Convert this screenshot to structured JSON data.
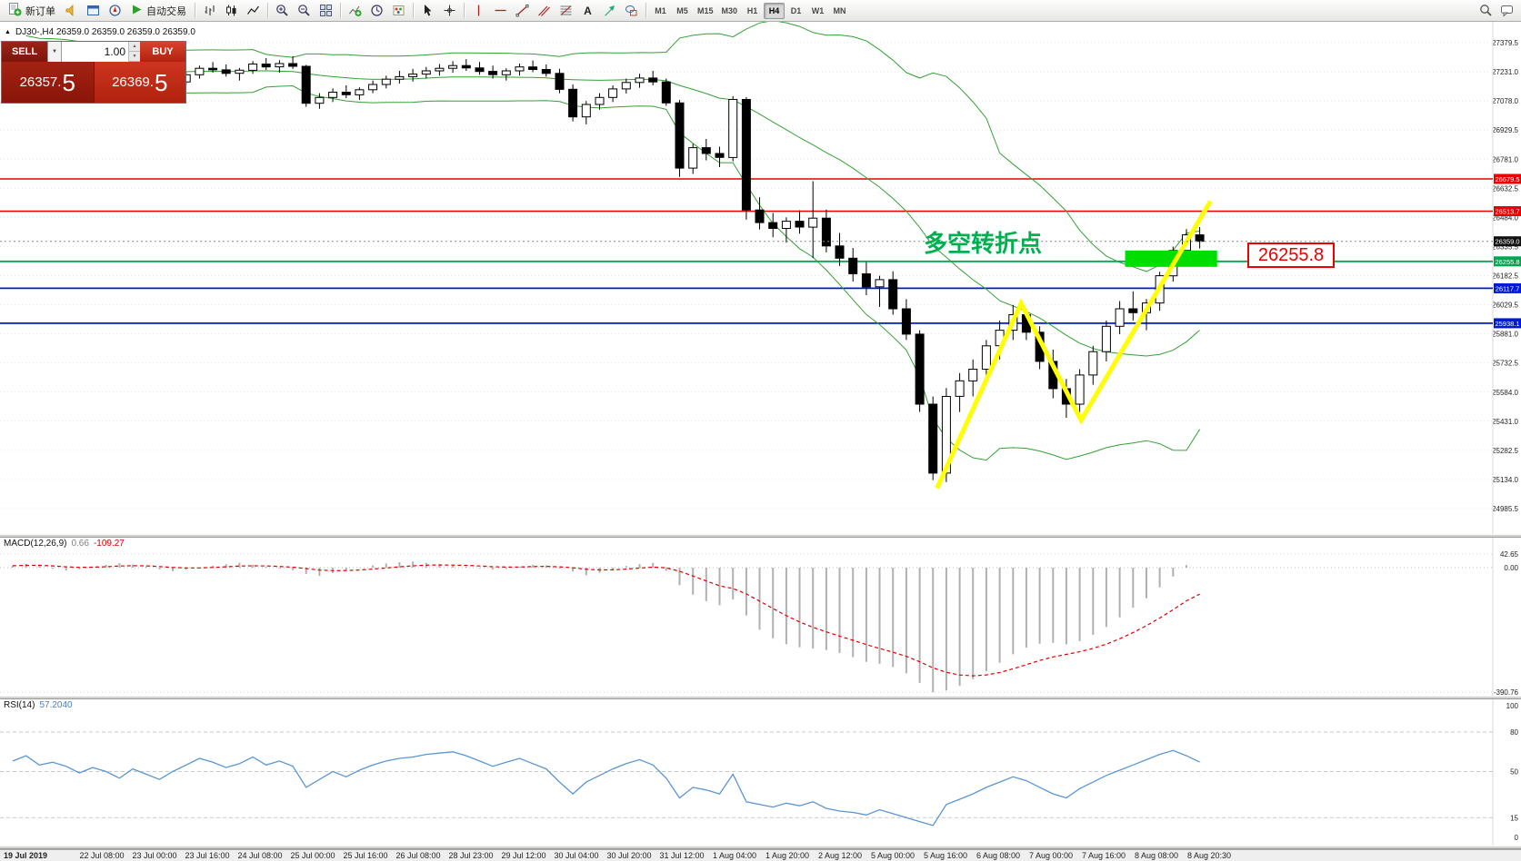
{
  "toolbar": {
    "new_order_label": "新订单",
    "autotrade_label": "自动交易",
    "timeframes": [
      "M1",
      "M5",
      "M15",
      "M30",
      "H1",
      "H4",
      "D1",
      "W1",
      "MN"
    ],
    "active_timeframe": "H4"
  },
  "trade_panel": {
    "sell_label": "SELL",
    "buy_label": "BUY",
    "volume": "1.00",
    "sell_price_main": "26357.",
    "sell_price_big": "5",
    "buy_price_main": "26369.",
    "buy_price_big": "5"
  },
  "chart": {
    "ohlc_header": "DJ30-,H4  26359.0 26359.0 26359.0 26359.0",
    "annotation": "多空转折点",
    "price_callout": "26255.8"
  },
  "chart_data": {
    "type": "candlestick",
    "title": "DJ30-,H4",
    "price_range": {
      "top": 27379.5,
      "bottom": 24985.5
    },
    "price_ticks": [
      "27379.5",
      "27231.0",
      "27078.0",
      "26929.5",
      "26781.0",
      "26632.5",
      "26484.0",
      "26335.5",
      "26182.5",
      "26029.5",
      "25881.0",
      "25732.5",
      "25584.0",
      "25431.0",
      "25282.5",
      "25134.0",
      "24985.5"
    ],
    "candles": [
      [
        27290,
        27340,
        27255,
        27315
      ],
      [
        27315,
        27350,
        27280,
        27295
      ],
      [
        27295,
        27325,
        27245,
        27265
      ],
      [
        27265,
        27305,
        27235,
        27285
      ],
      [
        27285,
        27315,
        27250,
        27268
      ],
      [
        27268,
        27295,
        27205,
        27225
      ],
      [
        27225,
        27265,
        27195,
        27245
      ],
      [
        27245,
        27275,
        27215,
        27228
      ],
      [
        27228,
        27255,
        27155,
        27175
      ],
      [
        27175,
        27225,
        27145,
        27205
      ],
      [
        27205,
        27235,
        27175,
        27188
      ],
      [
        27188,
        27215,
        27125,
        27145
      ],
      [
        27145,
        27195,
        27115,
        27178
      ],
      [
        27178,
        27230,
        27160,
        27215
      ],
      [
        27215,
        27262,
        27195,
        27248
      ],
      [
        27248,
        27280,
        27225,
        27240
      ],
      [
        27240,
        27268,
        27205,
        27222
      ],
      [
        27222,
        27250,
        27185,
        27238
      ],
      [
        27238,
        27285,
        27220,
        27270
      ],
      [
        27270,
        27300,
        27240,
        27255
      ],
      [
        27255,
        27290,
        27225,
        27272
      ],
      [
        27272,
        27310,
        27245,
        27258
      ],
      [
        27258,
        27265,
        27050,
        27068
      ],
      [
        27068,
        27120,
        27040,
        27098
      ],
      [
        27098,
        27145,
        27075,
        27125
      ],
      [
        27125,
        27160,
        27095,
        27112
      ],
      [
        27112,
        27150,
        27085,
        27138
      ],
      [
        27138,
        27185,
        27120,
        27165
      ],
      [
        27165,
        27210,
        27145,
        27192
      ],
      [
        27192,
        27235,
        27170,
        27205
      ],
      [
        27205,
        27245,
        27180,
        27218
      ],
      [
        27218,
        27255,
        27195,
        27235
      ],
      [
        27235,
        27270,
        27210,
        27248
      ],
      [
        27248,
        27285,
        27225,
        27262
      ],
      [
        27262,
        27295,
        27235,
        27250
      ],
      [
        27250,
        27280,
        27215,
        27232
      ],
      [
        27232,
        27262,
        27195,
        27215
      ],
      [
        27215,
        27248,
        27185,
        27235
      ],
      [
        27235,
        27272,
        27210,
        27255
      ],
      [
        27255,
        27288,
        27228,
        27242
      ],
      [
        27242,
        27268,
        27205,
        27222
      ],
      [
        27222,
        27245,
        27120,
        27140
      ],
      [
        27140,
        27165,
        26975,
        26998
      ],
      [
        26998,
        27080,
        26960,
        27062
      ],
      [
        27062,
        27120,
        27035,
        27098
      ],
      [
        27098,
        27160,
        27075,
        27142
      ],
      [
        27142,
        27195,
        27118,
        27175
      ],
      [
        27175,
        27220,
        27148,
        27198
      ],
      [
        27198,
        27235,
        27160,
        27178
      ],
      [
        27178,
        27195,
        27055,
        27070
      ],
      [
        27070,
        27085,
        26690,
        26735
      ],
      [
        26735,
        26860,
        26705,
        26840
      ],
      [
        26840,
        26885,
        26775,
        26810
      ],
      [
        26810,
        26845,
        26740,
        26790
      ],
      [
        26790,
        27105,
        26770,
        27088
      ],
      [
        27088,
        27100,
        26470,
        26520
      ],
      [
        26520,
        26585,
        26420,
        26455
      ],
      [
        26455,
        26505,
        26380,
        26425
      ],
      [
        26425,
        26482,
        26352,
        26462
      ],
      [
        26462,
        26518,
        26398,
        26432
      ],
      [
        26432,
        26668,
        26272,
        26478
      ],
      [
        26478,
        26522,
        26302,
        26335
      ],
      [
        26335,
        26402,
        26232,
        26272
      ],
      [
        26272,
        26325,
        26152,
        26192
      ],
      [
        26192,
        26252,
        26082,
        26125
      ],
      [
        26125,
        26182,
        26022,
        26162
      ],
      [
        26162,
        26205,
        25982,
        26012
      ],
      [
        26012,
        26062,
        25852,
        25882
      ],
      [
        25882,
        25902,
        25482,
        25522
      ],
      [
        25522,
        25562,
        25132,
        25168
      ],
      [
        25168,
        25605,
        25122,
        25562
      ],
      [
        25562,
        25682,
        25482,
        25642
      ],
      [
        25642,
        25752,
        25562,
        25702
      ],
      [
        25702,
        25852,
        25652,
        25822
      ],
      [
        25822,
        25952,
        25752,
        25902
      ],
      [
        25902,
        26032,
        25852,
        25982
      ],
      [
        25982,
        26012,
        25852,
        25892
      ],
      [
        25892,
        25922,
        25702,
        25742
      ],
      [
        25742,
        25802,
        25552,
        25602
      ],
      [
        25602,
        25652,
        25452,
        25522
      ],
      [
        25522,
        25702,
        25482,
        25672
      ],
      [
        25672,
        25822,
        25622,
        25792
      ],
      [
        25792,
        25952,
        25742,
        25922
      ],
      [
        25922,
        26052,
        25882,
        26012
      ],
      [
        26012,
        26102,
        25952,
        25992
      ],
      [
        25992,
        26062,
        25902,
        26042
      ],
      [
        26042,
        26202,
        26002,
        26182
      ],
      [
        26182,
        26332,
        26152,
        26312
      ],
      [
        26312,
        26422,
        26262,
        26392
      ],
      [
        26392,
        26432,
        26322,
        26359
      ]
    ],
    "bollinger": {
      "period": 20,
      "deviation": 2,
      "color": "#35a035"
    },
    "hlines": [
      {
        "price": 26679.5,
        "label": "26679.5",
        "color": "#ea0000",
        "width": 1.4
      },
      {
        "price": 26513.7,
        "label": "26513.7",
        "color": "#ea0000",
        "width": 1.4
      },
      {
        "price": 26255.8,
        "label": "26255.8",
        "color": "#00a651",
        "width": 1.8
      },
      {
        "price": 26117.7,
        "label": "26117.7",
        "color": "#0018d8",
        "width": 1.8
      },
      {
        "price": 25938.1,
        "label": "25938.1",
        "color": "#0018d8",
        "width": 1.8
      }
    ],
    "current_price": {
      "label": "26359.0",
      "price": 26359.0,
      "color": "#111111"
    },
    "highlight_box": {
      "from_idx": 83.4,
      "to_idx": 90.3,
      "price_top": 26312,
      "price_bottom": 26228,
      "color": "#00dd00"
    },
    "zigzag": {
      "color": "#ffff00",
      "points": [
        [
          69.3,
          25090
        ],
        [
          75.6,
          26040
        ],
        [
          80.1,
          25440
        ],
        [
          89.8,
          26565
        ]
      ]
    },
    "macd": {
      "header": "MACD(12,26,9)",
      "main_value": "0.66",
      "signal_value": "-109.27",
      "scale_labels": [
        "42.65",
        "0.00",
        "-390.76"
      ],
      "histogram_color": "#b0b0b0",
      "signal_color": "#e00000",
      "histogram": [
        6,
        12,
        8,
        -3,
        -9,
        -5,
        3,
        9,
        14,
        10,
        4,
        -5,
        -11,
        -7,
        -1,
        6,
        11,
        15,
        9,
        3,
        -3,
        -8,
        -20,
        -26,
        -17,
        -8,
        -1,
        7,
        13,
        17,
        19,
        15,
        11,
        7,
        3,
        -2,
        -6,
        -4,
        3,
        9,
        7,
        -3,
        -12,
        -24,
        -16,
        -6,
        5,
        11,
        15,
        -10,
        -55,
        -85,
        -105,
        -118,
        -100,
        -150,
        -195,
        -222,
        -240,
        -250,
        -254,
        -259,
        -268,
        -281,
        -296,
        -302,
        -312,
        -332,
        -362,
        -391,
        -386,
        -371,
        -350,
        -325,
        -299,
        -272,
        -251,
        -239,
        -236,
        -241,
        -231,
        -211,
        -186,
        -156,
        -126,
        -96,
        -62,
        -28,
        8,
        0.66
      ]
    },
    "rsi": {
      "header": "RSI(14)",
      "value": "57.2040",
      "color": "#5a96d2",
      "levels": [
        100,
        80,
        50,
        15,
        0
      ],
      "series": [
        58,
        62,
        55,
        57,
        54,
        49,
        53,
        50,
        45,
        52,
        48,
        44,
        50,
        55,
        60,
        57,
        53,
        56,
        61,
        55,
        58,
        54,
        38,
        44,
        50,
        46,
        51,
        55,
        58,
        60,
        61,
        63,
        64,
        65,
        62,
        58,
        54,
        57,
        60,
        56,
        52,
        42,
        33,
        42,
        47,
        52,
        56,
        59,
        55,
        45,
        30,
        38,
        36,
        33,
        48,
        27,
        25,
        23,
        26,
        24,
        27,
        22,
        20,
        19,
        17,
        21,
        18,
        15,
        12,
        9,
        25,
        29,
        33,
        38,
        42,
        46,
        43,
        38,
        33,
        30,
        37,
        42,
        47,
        51,
        55,
        59,
        63,
        66,
        62,
        57.2
      ]
    },
    "time_labels": [
      "19 Jul 2019",
      "22 Jul 08:00",
      "23 Jul 00:00",
      "23 Jul 16:00",
      "24 Jul 08:00",
      "25 Jul 00:00",
      "25 Jul 16:00",
      "26 Jul 08:00",
      "28 Jul 23:00",
      "29 Jul 12:00",
      "30 Jul 04:00",
      "30 Jul 20:00",
      "31 Jul 12:00",
      "1 Aug 04:00",
      "1 Aug 20:00",
      "2 Aug 12:00",
      "5 Aug 00:00",
      "5 Aug 16:00",
      "6 Aug 08:00",
      "7 Aug 00:00",
      "7 Aug 16:00",
      "8 Aug 08:00",
      "8 Aug 20:30"
    ]
  }
}
